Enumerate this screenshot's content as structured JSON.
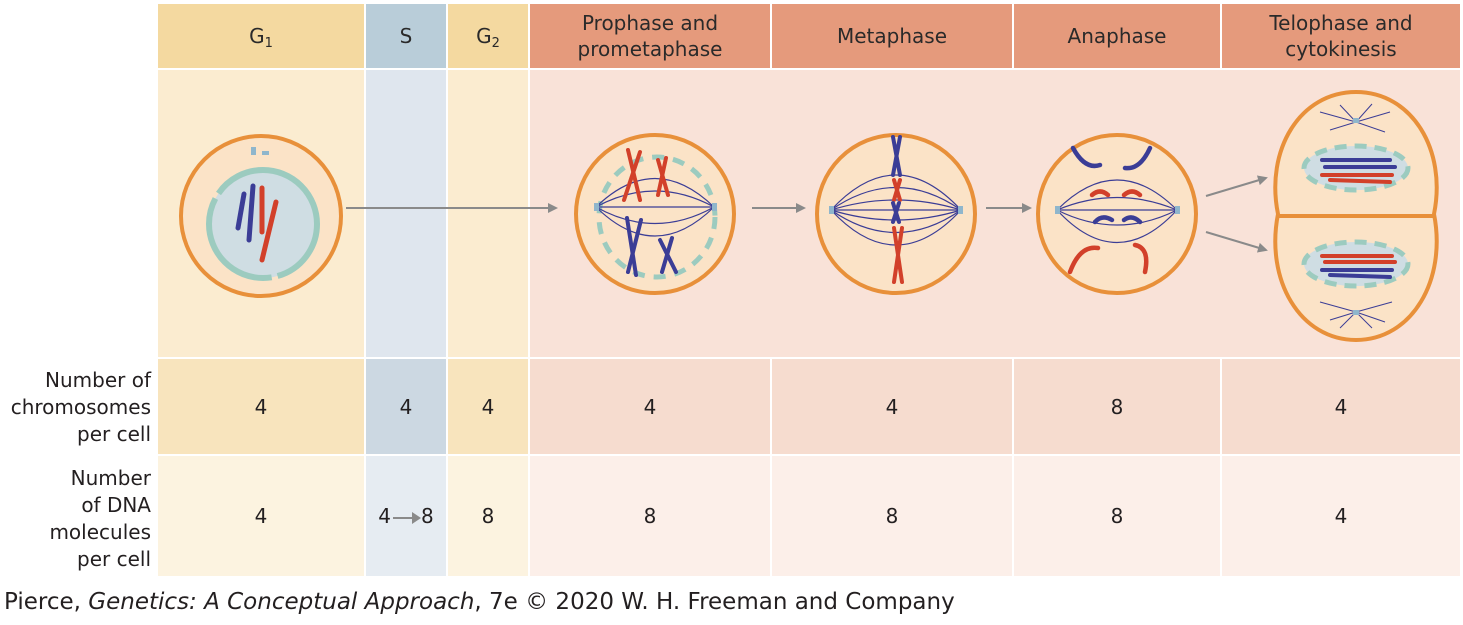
{
  "phases": [
    {
      "id": "g1",
      "label": "G",
      "sub": "1",
      "chromosomes": "4",
      "dna": "4"
    },
    {
      "id": "s",
      "label": "S",
      "sub": "",
      "chromosomes": "4",
      "dna_from": "4",
      "dna_to": "8"
    },
    {
      "id": "g2",
      "label": "G",
      "sub": "2",
      "chromosomes": "4",
      "dna": "8"
    },
    {
      "id": "prophase",
      "label_line1": "Prophase and",
      "label_line2": "prometaphase",
      "chromosomes": "4",
      "dna": "8"
    },
    {
      "id": "metaphase",
      "label": "Metaphase",
      "chromosomes": "4",
      "dna": "8"
    },
    {
      "id": "anaphase",
      "label": "Anaphase",
      "chromosomes": "8",
      "dna": "8"
    },
    {
      "id": "telophase",
      "label_line1": "Telophase and",
      "label_line2": "cytokinesis",
      "chromosomes": "4",
      "dna": "4"
    }
  ],
  "row_labels": {
    "chromosomes": [
      "Number of",
      "chromosomes",
      "per cell"
    ],
    "dna": [
      "Number",
      "of DNA",
      "molecules",
      "per cell"
    ]
  },
  "credit": {
    "author": "Pierce, ",
    "title": "Genetics: A Conceptual Approach",
    "rest": ", 7e © 2020 W. H. Freeman and Company"
  },
  "colors": {
    "interphase_header": "#f4d9a0",
    "s_header": "#b9cdd9",
    "mitosis_header": "#e59a7c",
    "cell_outline": "#e8903a",
    "red_chromosome": "#d2402a",
    "blue_chromosome": "#3b3d96",
    "nuclear_envelope": "#9ccbbf",
    "arrow": "#8a8a8a"
  }
}
